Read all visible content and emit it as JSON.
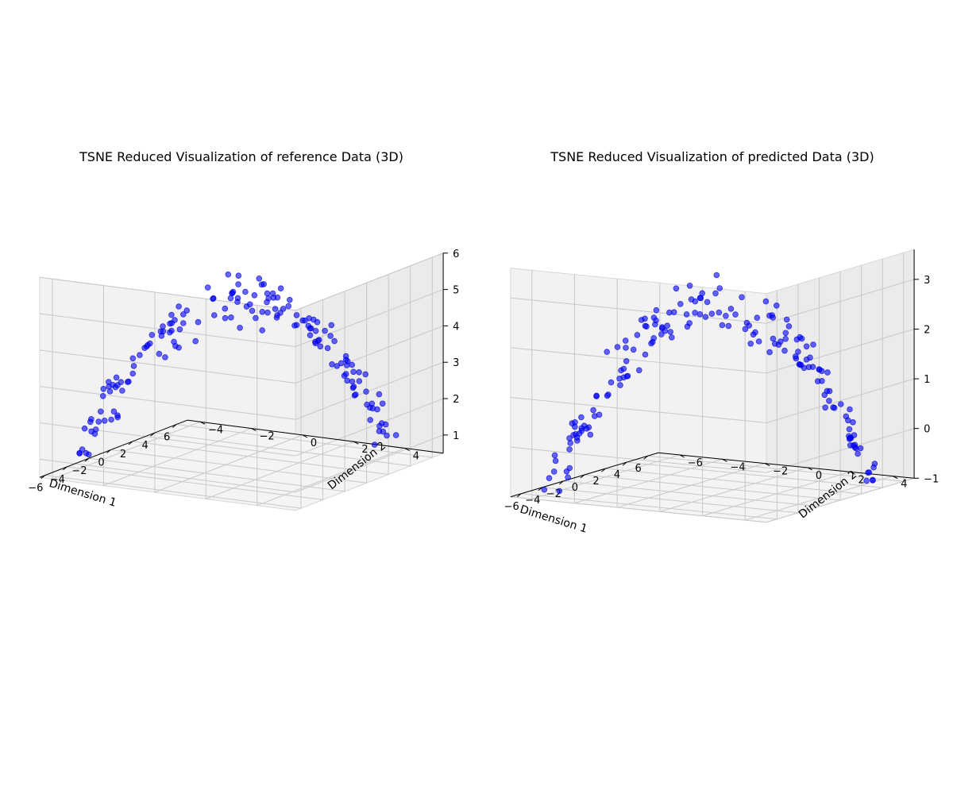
{
  "chart_data": [
    {
      "type": "scatter",
      "title": "TSNE Reduced Visualization of reference Data (3D)",
      "xlabel": "Dimension 1",
      "ylabel": "Dimension 2",
      "zlabel": "",
      "xlim": [
        -6.5,
        7
      ],
      "ylim": [
        -4.5,
        5.5
      ],
      "zlim": [
        0.5,
        6
      ],
      "xticks": [
        "−6",
        "−4",
        "−2",
        "0",
        "2",
        "4",
        "6"
      ],
      "yticks": [
        "−4",
        "−2",
        "0",
        "2",
        "4"
      ],
      "zticks": [
        "1",
        "2",
        "3",
        "4",
        "5",
        "6"
      ],
      "grid": true,
      "marker_color": "#0000ff",
      "marker_alpha": 0.6,
      "series": [
        {
          "points": []
        }
      ]
    },
    {
      "type": "scatter",
      "title": "TSNE Reduced Visualization of predicted Data (3D)",
      "xlabel": "Dimension 1",
      "ylabel": "Dimension 2",
      "zlabel": "",
      "xlim": [
        -7,
        7
      ],
      "ylim": [
        -7,
        5
      ],
      "zlim": [
        -1,
        3.6
      ],
      "xticks": [
        "−6",
        "−4",
        "−2",
        "0",
        "2",
        "4",
        "6"
      ],
      "yticks": [
        "−6",
        "−4",
        "−2",
        "0",
        "2",
        "4"
      ],
      "zticks": [
        "−1",
        "0",
        "1",
        "2",
        "3"
      ],
      "grid": true,
      "marker_color": "#0000ff",
      "marker_alpha": 0.6,
      "series": [
        {
          "points": []
        }
      ]
    }
  ]
}
